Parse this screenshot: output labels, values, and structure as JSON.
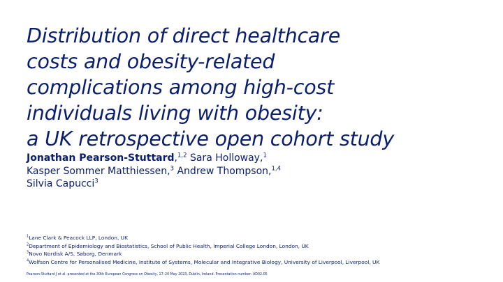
{
  "title": {
    "lines": [
      "Distribution of direct healthcare",
      "costs and obesity-related",
      "complications among high-cost",
      "individuals living with obesity:",
      "a UK retrospective open cohort study"
    ]
  },
  "authors": [
    {
      "name": "Jonathan Pearson-Stuttard",
      "sup": "1,2",
      "sep": ""
    },
    {
      "name": "Sara Holloway",
      "sup": "1",
      "sep": ","
    },
    {
      "name": "Kasper Sommer Matthiessen",
      "sup": "3",
      "sep": ","
    },
    {
      "name": "Andrew Thompson",
      "sup": "1,4",
      "sep": ","
    },
    {
      "name": "Silvia Capucci",
      "sup": "3",
      "sep": ""
    }
  ],
  "affiliations": [
    {
      "num": "1",
      "text": "Lane Clark & Peacock LLP, London, UK"
    },
    {
      "num": "2",
      "text": "Department of Epidemiology and Biostatistics, School of Public Health, Imperial College London, London, UK"
    },
    {
      "num": "3",
      "text": "Novo Nordisk A/S, Søborg, Denmark"
    },
    {
      "num": "4",
      "text": "Wolfson Centre for Personalised Medicine, Institute of Systems, Molecular and Integrative Biology, University of Liverpool, Liverpool, UK"
    }
  ],
  "footer": "Pearson-Stuttard J et al. presented at the 30th European Congress on Obesity, 17–20 May 2023, Dublin, Ireland. Presentation number: AD02.05",
  "colors": {
    "text": "#0a1e6e",
    "background": "#ffffff"
  }
}
